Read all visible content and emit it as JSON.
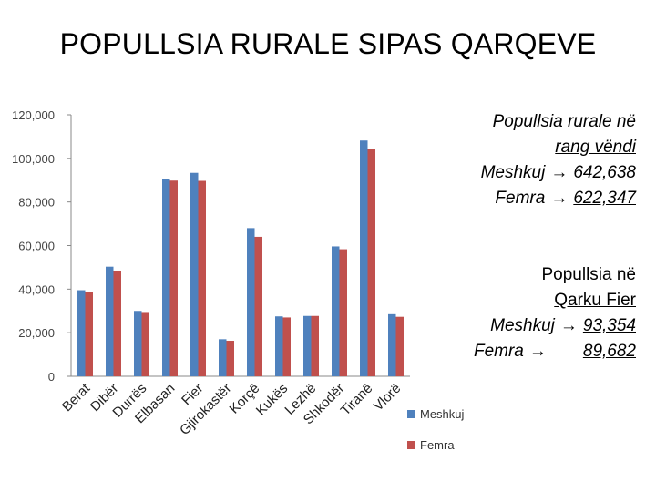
{
  "title": "POPULLSIA RURALE SIPAS QARQEVE",
  "chart_data": {
    "type": "bar",
    "categories": [
      "Berat",
      "Dibër",
      "Durrës",
      "Elbasan",
      "Fier",
      "Gjirokastër",
      "Korçë",
      "Kukës",
      "Lezhë",
      "Shkodër",
      "Tiranë",
      "Vlorë"
    ],
    "series": [
      {
        "name": "Meshkuj",
        "color": "#4f81bd",
        "values": [
          39500,
          50300,
          30000,
          90500,
          93354,
          17000,
          68000,
          27500,
          27700,
          59600,
          108200,
          28500
        ]
      },
      {
        "name": "Femra",
        "color": "#c0504d",
        "values": [
          38500,
          48500,
          29500,
          89800,
          89682,
          16300,
          64000,
          27000,
          27700,
          58300,
          104300,
          27300
        ]
      }
    ],
    "ylim": [
      0,
      120000
    ],
    "y_ticks": [
      "0",
      "20,000",
      "40,000",
      "60,000",
      "80,000",
      "100,000",
      "120,000"
    ],
    "grid": false,
    "legend_position": "bottom-right"
  },
  "notes": {
    "national": {
      "heading_line1": "Popullsia rurale në",
      "heading_line2": "rang vëndi",
      "male_label": "Meshkuj",
      "male_value": "642,638",
      "female_label": "Femra",
      "female_value": "622,347"
    },
    "fier": {
      "heading_line1": "Popullsia në",
      "heading_line2": "Qarku Fier",
      "male_label": "Meshkuj",
      "male_value": "93,354",
      "female_label": "Femra",
      "female_value": "89,682"
    }
  }
}
